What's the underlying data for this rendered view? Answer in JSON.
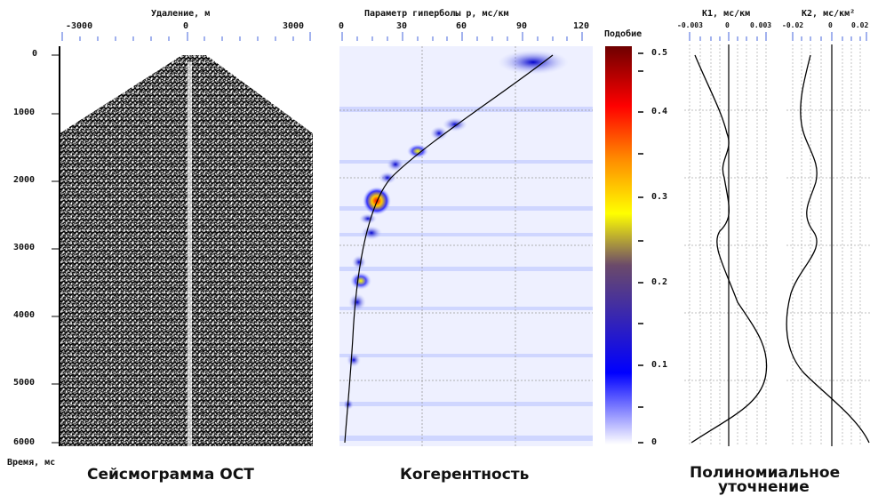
{
  "seismogram": {
    "title": "Удаление, м",
    "x_ticks": [
      "-3000",
      "0",
      "3000"
    ],
    "y_ticks": [
      "0",
      "1000",
      "2000",
      "3000",
      "4000",
      "5000",
      "6000"
    ],
    "y_axis_label": "Время, мс",
    "caption": "Сейсмограмма ОСТ"
  },
  "coherence": {
    "title": "Параметр гиперболы p, мс/км",
    "x_ticks": [
      "0",
      "30",
      "60",
      "90",
      "120"
    ],
    "caption": "Когерентность"
  },
  "colorbar": {
    "title": "Подобие",
    "ticks": [
      "0",
      "0.1",
      "0.2",
      "0.3",
      "0.4",
      "0.5"
    ],
    "stops": [
      "#ffffff",
      "#0000ff",
      "#5a3a7a",
      "#ffff00",
      "#ff8800",
      "#ff0000",
      "#7a0000"
    ]
  },
  "k1": {
    "title": "K1, мс/км",
    "x_ticks": [
      "-0.003",
      "0",
      "0.003"
    ]
  },
  "k2": {
    "title": "K2, мс/км²",
    "x_ticks": [
      "-0.02",
      "0",
      "0.02"
    ]
  },
  "poly_caption_line1": "Полиномиальное",
  "poly_caption_line2": "уточнение"
}
